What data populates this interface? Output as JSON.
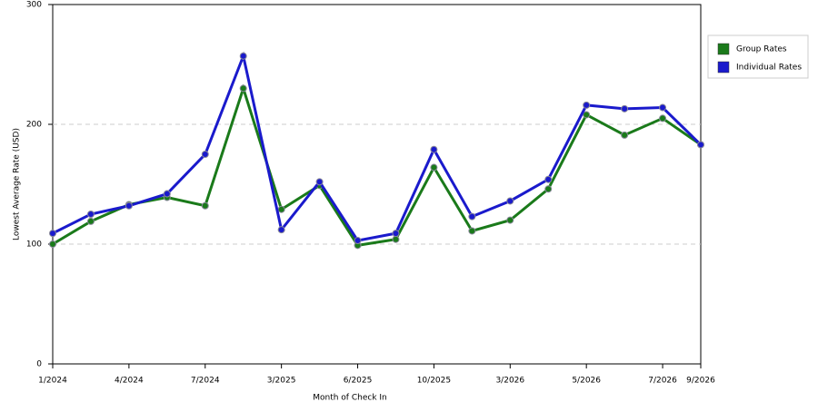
{
  "chart_data": {
    "type": "line",
    "x_label": "Month of Check In",
    "y_label": "Lowest Average Rate (USD)",
    "categories": [
      "1/2024",
      null,
      "4/2024",
      null,
      "7/2024",
      null,
      "3/2025",
      null,
      "6/2025",
      null,
      "10/2025",
      null,
      "3/2026",
      null,
      "5/2026",
      null,
      "7/2026",
      "9/2026"
    ],
    "series": [
      {
        "name": "Group Rates",
        "color": "#1a7a1a",
        "values": [
          100,
          119,
          133,
          139,
          132,
          230,
          129,
          149,
          99,
          104,
          164,
          111,
          120,
          146,
          208,
          191,
          205,
          183
        ]
      },
      {
        "name": "Individual Rates",
        "color": "#1a1acc",
        "values": [
          109,
          125,
          132,
          142,
          175,
          257,
          112,
          152,
          103,
          109,
          179,
          123,
          136,
          154,
          216,
          213,
          214,
          183
        ]
      }
    ],
    "ylim": [
      0,
      300
    ],
    "yticks": [
      0,
      100,
      200,
      300
    ],
    "grid": true,
    "legend": "right"
  }
}
